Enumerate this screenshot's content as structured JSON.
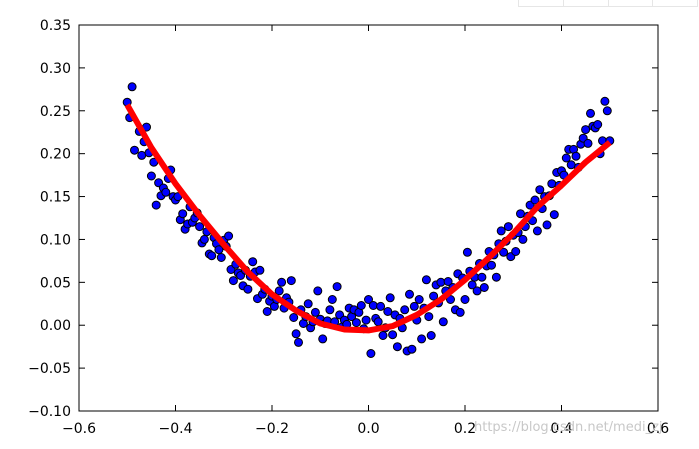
{
  "chart_data": {
    "type": "scatter",
    "title": "",
    "xlabel": "",
    "ylabel": "",
    "xlim": [
      -0.6,
      0.6
    ],
    "ylim": [
      -0.1,
      0.35
    ],
    "xticks": [
      -0.6,
      -0.4,
      -0.2,
      0.0,
      0.2,
      0.4,
      0.6
    ],
    "xtick_labels": [
      "−0.6",
      "−0.4",
      "−0.2",
      "0.0",
      "0.2",
      "0.4",
      "0.6"
    ],
    "yticks": [
      -0.1,
      -0.05,
      0.0,
      0.05,
      0.1,
      0.15,
      0.2,
      0.25,
      0.3,
      0.35
    ],
    "ytick_labels": [
      "−0.10",
      "−0.05",
      "0.00",
      "0.05",
      "0.10",
      "0.15",
      "0.20",
      "0.25",
      "0.30",
      "0.35"
    ],
    "grid": false,
    "series": [
      {
        "kind": "scatter",
        "color": "#0000ff",
        "edge_color": "#000000",
        "points": [
          [
            -0.5,
            0.26
          ],
          [
            -0.495,
            0.242
          ],
          [
            -0.49,
            0.278
          ],
          [
            -0.485,
            0.204
          ],
          [
            -0.475,
            0.226
          ],
          [
            -0.47,
            0.198
          ],
          [
            -0.465,
            0.214
          ],
          [
            -0.46,
            0.231
          ],
          [
            -0.455,
            0.201
          ],
          [
            -0.45,
            0.174
          ],
          [
            -0.445,
            0.19
          ],
          [
            -0.44,
            0.14
          ],
          [
            -0.435,
            0.166
          ],
          [
            -0.43,
            0.151
          ],
          [
            -0.425,
            0.16
          ],
          [
            -0.42,
            0.155
          ],
          [
            -0.415,
            0.171
          ],
          [
            -0.41,
            0.181
          ],
          [
            -0.405,
            0.15
          ],
          [
            -0.4,
            0.146
          ],
          [
            -0.395,
            0.15
          ],
          [
            -0.39,
            0.123
          ],
          [
            -0.385,
            0.13
          ],
          [
            -0.38,
            0.112
          ],
          [
            -0.375,
            0.118
          ],
          [
            -0.37,
            0.138
          ],
          [
            -0.365,
            0.12
          ],
          [
            -0.36,
            0.125
          ],
          [
            -0.355,
            0.131
          ],
          [
            -0.35,
            0.115
          ],
          [
            -0.345,
            0.096
          ],
          [
            -0.34,
            0.1
          ],
          [
            -0.335,
            0.109
          ],
          [
            -0.33,
            0.083
          ],
          [
            -0.325,
            0.081
          ],
          [
            -0.32,
            0.102
          ],
          [
            -0.315,
            0.095
          ],
          [
            -0.31,
            0.088
          ],
          [
            -0.305,
            0.079
          ],
          [
            -0.3,
            0.099
          ],
          [
            -0.295,
            0.092
          ],
          [
            -0.29,
            0.104
          ],
          [
            -0.285,
            0.065
          ],
          [
            -0.28,
            0.052
          ],
          [
            -0.275,
            0.071
          ],
          [
            -0.27,
            0.061
          ],
          [
            -0.265,
            0.058
          ],
          [
            -0.26,
            0.046
          ],
          [
            -0.255,
            0.064
          ],
          [
            -0.25,
            0.042
          ],
          [
            -0.245,
            0.057
          ],
          [
            -0.24,
            0.074
          ],
          [
            -0.235,
            0.062
          ],
          [
            -0.23,
            0.031
          ],
          [
            -0.225,
            0.064
          ],
          [
            -0.22,
            0.036
          ],
          [
            -0.215,
            0.042
          ],
          [
            -0.21,
            0.016
          ],
          [
            -0.205,
            0.028
          ],
          [
            -0.2,
            0.034
          ],
          [
            -0.195,
            0.022
          ],
          [
            -0.19,
            0.03
          ],
          [
            -0.185,
            0.04
          ],
          [
            -0.18,
            0.05
          ],
          [
            -0.175,
            0.02
          ],
          [
            -0.17,
            0.032
          ],
          [
            -0.165,
            0.027
          ],
          [
            -0.16,
            0.052
          ],
          [
            -0.155,
            0.009
          ],
          [
            -0.15,
            -0.01
          ],
          [
            -0.145,
            -0.02
          ],
          [
            -0.14,
            0.018
          ],
          [
            -0.135,
            0.002
          ],
          [
            -0.13,
            0.01
          ],
          [
            -0.125,
            0.025
          ],
          [
            -0.12,
            -0.003
          ],
          [
            -0.115,
            0.004
          ],
          [
            -0.11,
            0.015
          ],
          [
            -0.105,
            0.04
          ],
          [
            -0.1,
            0.007
          ],
          [
            -0.095,
            -0.016
          ],
          [
            -0.09,
            0.002
          ],
          [
            -0.085,
            0.005
          ],
          [
            -0.08,
            0.018
          ],
          [
            -0.075,
            0.03
          ],
          [
            -0.07,
            0.004
          ],
          [
            -0.065,
            0.045
          ],
          [
            -0.06,
            0.012
          ],
          [
            -0.055,
            -0.002
          ],
          [
            -0.05,
            0.006
          ],
          [
            -0.045,
            0.001
          ],
          [
            -0.04,
            0.02
          ],
          [
            -0.035,
            0.01
          ],
          [
            -0.03,
            0.018
          ],
          [
            -0.025,
            0.003
          ],
          [
            -0.02,
            0.015
          ],
          [
            -0.015,
            0.023
          ],
          [
            -0.01,
            -0.004
          ],
          [
            -0.005,
            0.006
          ],
          [
            0.0,
            0.03
          ],
          [
            0.005,
            -0.033
          ],
          [
            0.01,
            0.023
          ],
          [
            0.015,
            0.008
          ],
          [
            0.02,
            0.004
          ],
          [
            0.025,
            0.022
          ],
          [
            0.03,
            -0.012
          ],
          [
            0.035,
            -0.003
          ],
          [
            0.04,
            0.016
          ],
          [
            0.045,
            0.032
          ],
          [
            0.05,
            -0.011
          ],
          [
            0.055,
            0.012
          ],
          [
            0.06,
            -0.025
          ],
          [
            0.065,
            0.008
          ],
          [
            0.07,
            -0.003
          ],
          [
            0.075,
            0.018
          ],
          [
            0.08,
            -0.03
          ],
          [
            0.085,
            0.036
          ],
          [
            0.09,
            -0.028
          ],
          [
            0.095,
            0.022
          ],
          [
            0.1,
            0.006
          ],
          [
            0.105,
            0.03
          ],
          [
            0.11,
            -0.016
          ],
          [
            0.115,
            0.02
          ],
          [
            0.12,
            0.053
          ],
          [
            0.125,
            0.01
          ],
          [
            0.13,
            -0.012
          ],
          [
            0.135,
            0.034
          ],
          [
            0.14,
            0.047
          ],
          [
            0.145,
            0.026
          ],
          [
            0.15,
            0.05
          ],
          [
            0.155,
            0.004
          ],
          [
            0.16,
            0.04
          ],
          [
            0.165,
            0.051
          ],
          [
            0.17,
            0.03
          ],
          [
            0.175,
            0.044
          ],
          [
            0.18,
            0.018
          ],
          [
            0.185,
            0.06
          ],
          [
            0.19,
            0.015
          ],
          [
            0.195,
            0.055
          ],
          [
            0.2,
            0.03
          ],
          [
            0.205,
            0.085
          ],
          [
            0.21,
            0.063
          ],
          [
            0.215,
            0.047
          ],
          [
            0.22,
            0.056
          ],
          [
            0.225,
            0.04
          ],
          [
            0.23,
            0.072
          ],
          [
            0.235,
            0.056
          ],
          [
            0.24,
            0.044
          ],
          [
            0.245,
            0.069
          ],
          [
            0.25,
            0.086
          ],
          [
            0.255,
            0.07
          ],
          [
            0.26,
            0.082
          ],
          [
            0.265,
            0.056
          ],
          [
            0.27,
            0.095
          ],
          [
            0.275,
            0.11
          ],
          [
            0.28,
            0.085
          ],
          [
            0.285,
            0.098
          ],
          [
            0.29,
            0.115
          ],
          [
            0.295,
            0.08
          ],
          [
            0.3,
            0.105
          ],
          [
            0.305,
            0.086
          ],
          [
            0.31,
            0.108
          ],
          [
            0.315,
            0.13
          ],
          [
            0.32,
            0.1
          ],
          [
            0.325,
            0.115
          ],
          [
            0.33,
            0.127
          ],
          [
            0.335,
            0.14
          ],
          [
            0.34,
            0.122
          ],
          [
            0.345,
            0.146
          ],
          [
            0.35,
            0.11
          ],
          [
            0.355,
            0.158
          ],
          [
            0.36,
            0.136
          ],
          [
            0.365,
            0.15
          ],
          [
            0.37,
            0.117
          ],
          [
            0.375,
            0.151
          ],
          [
            0.38,
            0.165
          ],
          [
            0.385,
            0.129
          ],
          [
            0.39,
            0.178
          ],
          [
            0.395,
            0.163
          ],
          [
            0.4,
            0.18
          ],
          [
            0.405,
            0.175
          ],
          [
            0.41,
            0.195
          ],
          [
            0.415,
            0.205
          ],
          [
            0.42,
            0.187
          ],
          [
            0.425,
            0.205
          ],
          [
            0.43,
            0.197
          ],
          [
            0.435,
            0.184
          ],
          [
            0.44,
            0.211
          ],
          [
            0.445,
            0.218
          ],
          [
            0.45,
            0.228
          ],
          [
            0.455,
            0.212
          ],
          [
            0.46,
            0.247
          ],
          [
            0.465,
            0.232
          ],
          [
            0.47,
            0.23
          ],
          [
            0.475,
            0.234
          ],
          [
            0.48,
            0.2
          ],
          [
            0.485,
            0.215
          ],
          [
            0.49,
            0.261
          ],
          [
            0.495,
            0.25
          ],
          [
            0.5,
            0.215
          ]
        ]
      },
      {
        "kind": "line",
        "color": "#ff0000",
        "x": [
          -0.5,
          -0.45,
          -0.4,
          -0.35,
          -0.3,
          -0.25,
          -0.2,
          -0.15,
          -0.1,
          -0.05,
          0.0,
          0.05,
          0.1,
          0.15,
          0.2,
          0.25,
          0.3,
          0.35,
          0.4,
          0.45,
          0.5
        ],
        "y": [
          0.257,
          0.207,
          0.165,
          0.128,
          0.094,
          0.062,
          0.036,
          0.017,
          0.002,
          -0.005,
          -0.006,
          -0.001,
          0.012,
          0.03,
          0.053,
          0.079,
          0.107,
          0.138,
          0.163,
          0.19,
          0.213
        ]
      }
    ]
  },
  "watermark": {
    "text": "https://blog.csdn.net/medi_zj"
  }
}
